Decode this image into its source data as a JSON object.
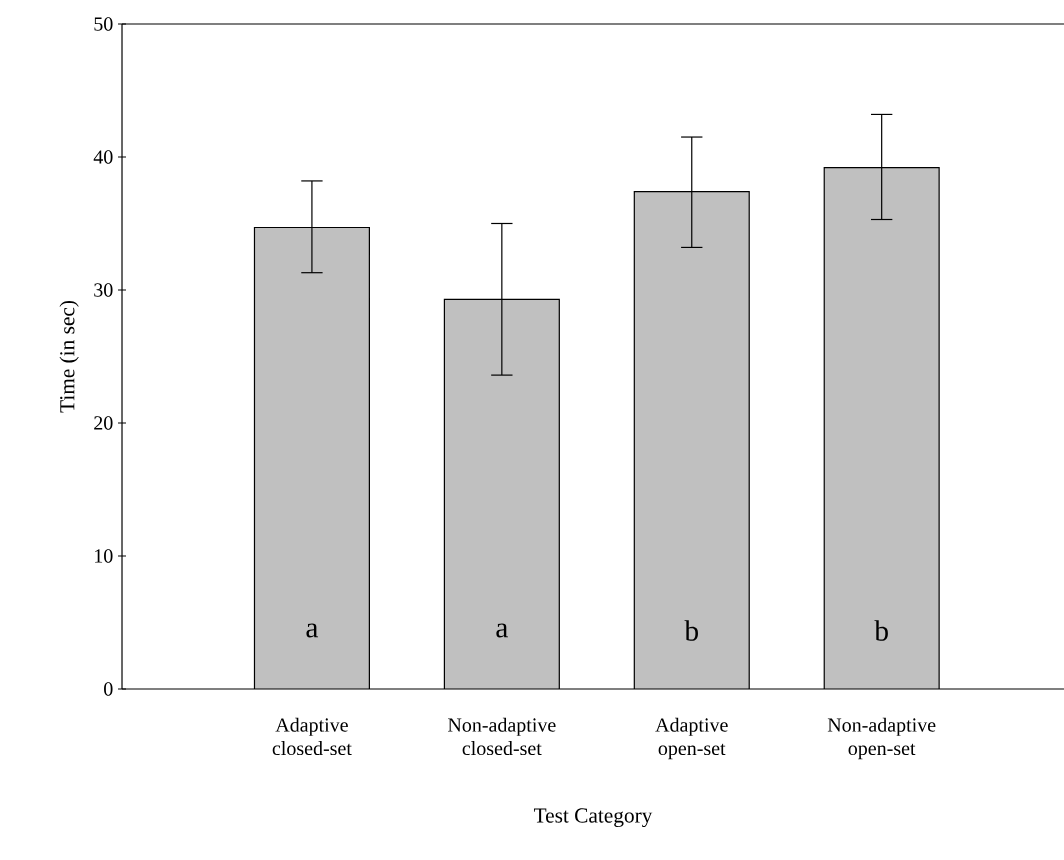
{
  "chart_data": {
    "type": "bar",
    "xlabel": "Test Category",
    "ylabel": "Time (in sec)",
    "categories": [
      "Adaptive closed-set",
      "Non-adaptive closed-set",
      "Adaptive open-set",
      "Non-adaptive open-set"
    ],
    "values": [
      34.7,
      29.3,
      37.4,
      39.2
    ],
    "errors": [
      [
        31.3,
        38.2
      ],
      [
        23.6,
        35.0
      ],
      [
        33.2,
        41.5
      ],
      [
        35.3,
        43.2
      ]
    ],
    "color": "#c0c0c0",
    "ylim": [
      0,
      50
    ],
    "yticks": [
      0,
      10,
      20,
      30,
      40,
      50
    ],
    "annotations": [
      "a",
      "a",
      "b",
      "b"
    ]
  }
}
